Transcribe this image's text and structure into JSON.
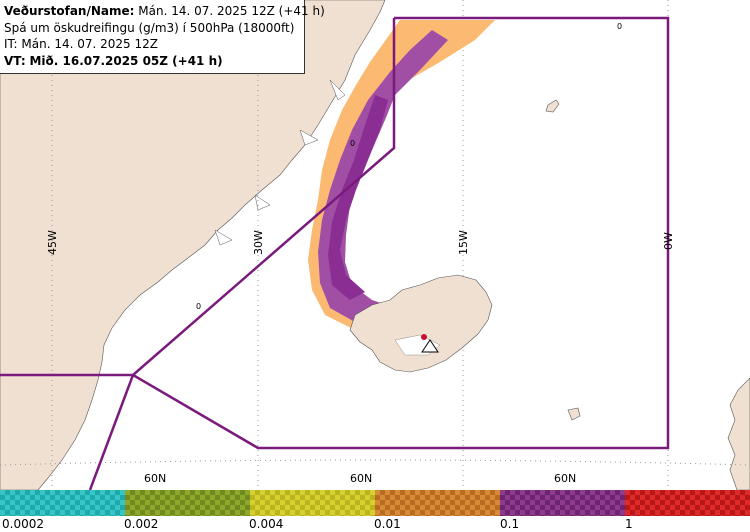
{
  "header": {
    "line1_label": "Veðurstofan/Name:",
    "line1_value": "Mán. 14. 07. 2025 12Z (+41 h)",
    "line2": "Spá um öskudreifingu (g/m3) í 500hPa (18000ft)",
    "line3": "IT: Mán. 14. 07. 2025 12Z",
    "line4_label": "VT:",
    "line4_value": "Mið. 16.07.2025 05Z (+41 h)"
  },
  "map": {
    "longitude_labels": [
      "45W",
      "30W",
      "15W",
      "0W"
    ],
    "latitude_labels": [
      "60N",
      "60N",
      "60N"
    ],
    "small_labels": [
      "0",
      "0",
      "0"
    ],
    "colors": {
      "land": "#f0e0d2",
      "sea": "#ffffff",
      "boundary": "#7b1a7d",
      "ash_orange": "#fbb56a",
      "ash_purple": "#a04fa5",
      "ash_purple_dark": "#8a2e93",
      "volcano_marker": "#c8102e"
    }
  },
  "legend": {
    "bins": [
      {
        "color_a": "#36c6c8",
        "color_b": "#1fa9ab"
      },
      {
        "color_a": "#8fa72a",
        "color_b": "#6f8a1e"
      },
      {
        "color_a": "#d6d12e",
        "color_b": "#b9b41f"
      },
      {
        "color_a": "#d98a36",
        "color_b": "#b86c22"
      },
      {
        "color_a": "#8e3b8f",
        "color_b": "#6e2570"
      },
      {
        "color_a": "#e02a2a",
        "color_b": "#b71717"
      }
    ],
    "labels": [
      "0.0002",
      "0.002",
      "0.004",
      "0.01",
      "0.1",
      "1"
    ]
  }
}
